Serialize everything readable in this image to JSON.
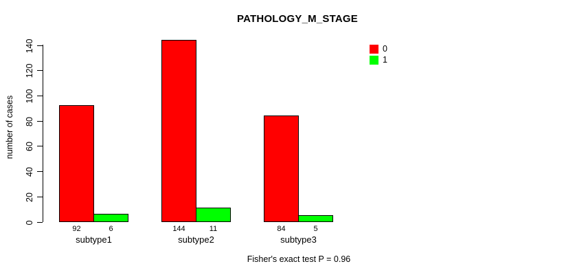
{
  "title": "PATHOLOGY_M_STAGE",
  "ylabel": "number of cases",
  "footer": "Fisher's exact test P = 0.96",
  "colors": {
    "series0": "#ff0000",
    "series1": "#00ff00",
    "axis": "#000000",
    "background": "#ffffff"
  },
  "chart_data": {
    "type": "bar",
    "title": "PATHOLOGY_M_STAGE",
    "xlabel": "",
    "ylabel": "number of cases",
    "categories": [
      "subtype1",
      "subtype2",
      "subtype3"
    ],
    "series": [
      {
        "name": "0",
        "color": "#ff0000",
        "values": [
          92,
          144,
          84
        ]
      },
      {
        "name": "1",
        "color": "#00ff00",
        "values": [
          6,
          11,
          5
        ]
      }
    ],
    "bar_value_labels": [
      [
        92,
        6
      ],
      [
        144,
        11
      ],
      [
        84,
        5
      ]
    ],
    "yticks": [
      0,
      20,
      40,
      60,
      80,
      100,
      120,
      140
    ],
    "ylim": [
      0,
      140
    ],
    "grid": false,
    "legend_position": "top-right",
    "annotation": "Fisher's exact test P = 0.96"
  }
}
